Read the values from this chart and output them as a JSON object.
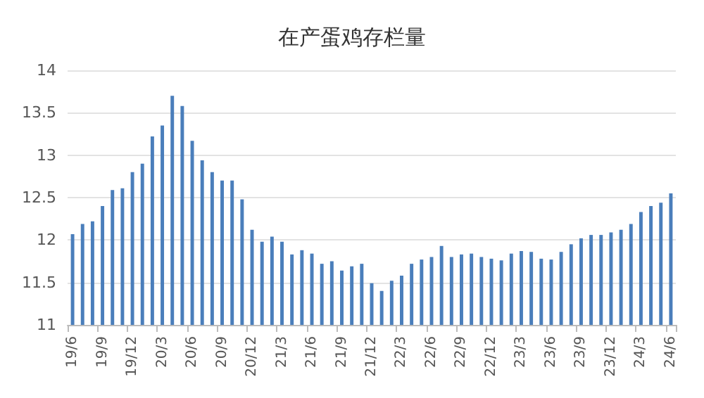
{
  "chart_data": {
    "type": "bar",
    "title": "在产蛋鸡存栏量",
    "categories": [
      "19/6",
      null,
      null,
      "19/9",
      null,
      null,
      "19/12",
      null,
      null,
      "20/3",
      null,
      null,
      "20/6",
      null,
      null,
      "20/9",
      null,
      null,
      "20/12",
      null,
      null,
      "21/3",
      null,
      null,
      "21/6",
      null,
      null,
      "21/9",
      null,
      null,
      "21/12",
      null,
      null,
      "22/3",
      null,
      null,
      "22/6",
      null,
      null,
      "22/9",
      null,
      null,
      "22/12",
      null,
      null,
      "23/3",
      null,
      null,
      "23/6",
      null,
      null,
      "23/9",
      null,
      null,
      "23/12",
      null,
      null,
      "24/3",
      null,
      null,
      "24/6"
    ],
    "values": [
      12.07,
      12.19,
      12.22,
      12.4,
      12.59,
      12.61,
      12.8,
      12.9,
      13.22,
      13.35,
      13.7,
      13.58,
      13.17,
      12.94,
      12.8,
      12.7,
      12.7,
      12.48,
      12.12,
      11.98,
      12.04,
      11.98,
      11.83,
      11.88,
      11.84,
      11.72,
      11.75,
      11.64,
      11.69,
      11.72,
      11.49,
      11.4,
      11.52,
      11.58,
      11.72,
      11.77,
      11.8,
      11.93,
      11.8,
      11.83,
      11.84,
      11.8,
      11.78,
      11.76,
      11.84,
      11.87,
      11.86,
      11.78,
      11.77,
      11.86,
      11.95,
      12.02,
      12.06,
      12.06,
      12.09,
      12.12,
      12.19,
      12.33,
      12.4,
      12.44,
      12.55
    ],
    "color": "#4a7ebb",
    "ylim": [
      11,
      14
    ],
    "yticks": [
      11,
      11.5,
      12,
      12.5,
      13,
      13.5,
      14
    ],
    "grid": "y"
  }
}
